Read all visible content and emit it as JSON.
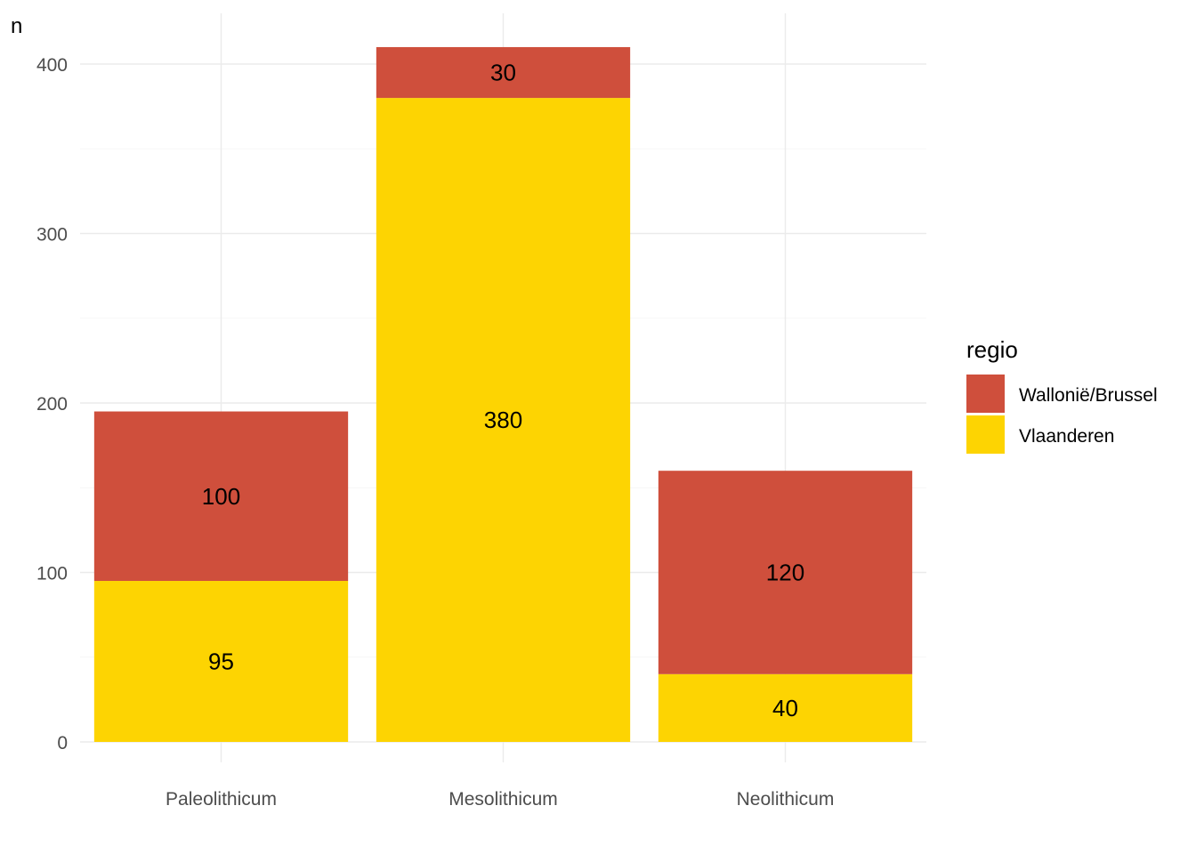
{
  "chart_data": {
    "type": "bar",
    "stacked": true,
    "categories": [
      "Paleolithicum",
      "Mesolithicum",
      "Neolithicum"
    ],
    "series": [
      {
        "name": "Vlaanderen",
        "values": [
          95,
          380,
          40
        ],
        "color": "#FDD402"
      },
      {
        "name": "Wallonië/Brussel",
        "values": [
          100,
          30,
          120
        ],
        "color": "#CF4F3C"
      }
    ],
    "title": "",
    "xlabel": "",
    "ylabel": "n",
    "ylim": [
      0,
      430
    ],
    "yticks": [
      0,
      100,
      200,
      300,
      400
    ],
    "grid": true,
    "legend": {
      "title": "regio",
      "position": "right",
      "order": [
        "Wallonië/Brussel",
        "Vlaanderen"
      ]
    }
  }
}
